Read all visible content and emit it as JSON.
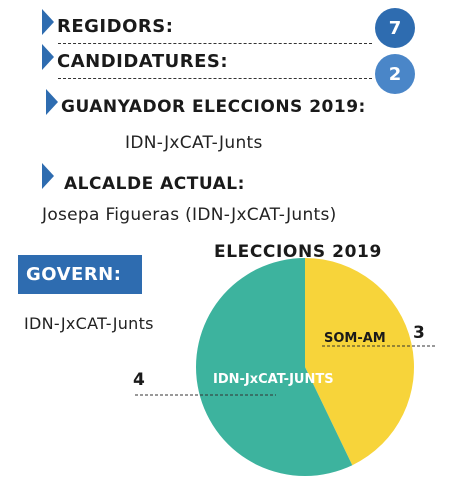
{
  "regidors": {
    "label": "REGIDORS:",
    "value": "7"
  },
  "candidatures": {
    "label": "CANDIDATURES:",
    "value": "2"
  },
  "guanyador": {
    "label": "GUANYADOR ELECCIONS 2019:",
    "value": "IDN-JxCAT-Junts"
  },
  "alcalde": {
    "label": "ALCALDE ACTUAL:",
    "value": "Josepa Figueras (IDN-JxCAT-Junts)"
  },
  "govern": {
    "label": "GOVERN:",
    "value": "IDN-JxCAT-Junts"
  },
  "colors": {
    "accent": "#2e6cb0",
    "circle_regidors": "#2e6cb0",
    "circle_candidatures": "#4a86c8"
  },
  "chart_data": {
    "type": "pie",
    "title": "ELECCIONS 2019",
    "slices": [
      {
        "label": "IDN-JxCAT-JUNTS",
        "value": 4,
        "color": "#3db39e"
      },
      {
        "label": "SOM-AM",
        "value": 3,
        "color": "#f7d43a"
      }
    ]
  }
}
